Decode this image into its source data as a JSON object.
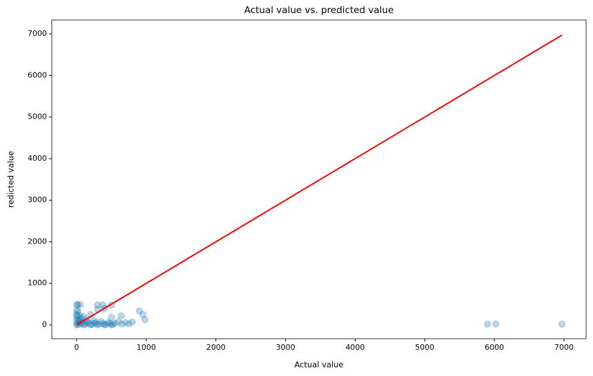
{
  "chart_data": {
    "type": "scatter",
    "title": "Actual value vs. predicted value",
    "x_label": "Actual value",
    "y_label": "redicted value",
    "x": [
      5,
      50,
      10,
      300,
      380,
      500,
      0,
      20,
      300,
      400,
      900,
      950,
      980,
      640,
      500,
      200,
      100,
      0,
      50,
      150,
      250,
      350,
      450,
      550,
      600,
      700,
      750,
      800,
      650,
      5900,
      6020,
      6970,
      0,
      10,
      30,
      60,
      80,
      120,
      170,
      220,
      280,
      320,
      380,
      420,
      480,
      520,
      20,
      40,
      0,
      100,
      200,
      300,
      400,
      500,
      150,
      250,
      0,
      30,
      70
    ],
    "y": [
      490,
      490,
      480,
      480,
      480,
      480,
      350,
      320,
      380,
      400,
      340,
      250,
      130,
      220,
      180,
      250,
      200,
      200,
      150,
      120,
      100,
      80,
      60,
      40,
      80,
      60,
      30,
      70,
      20,
      20,
      20,
      20,
      0,
      50,
      100,
      30,
      60,
      20,
      40,
      10,
      50,
      20,
      30,
      10,
      40,
      10,
      10,
      80,
      120,
      0,
      0,
      0,
      0,
      0,
      80,
      40,
      250,
      230,
      170
    ],
    "color": "#1f77b4",
    "line": {
      "x": [
        0,
        6970
      ],
      "y": [
        0,
        6970
      ],
      "color": "#ff0000"
    },
    "xlim": [
      -357,
      7317
    ],
    "ylim": [
      -332,
      7333
    ],
    "xticks": [
      0,
      1000,
      2000,
      3000,
      4000,
      5000,
      6000,
      7000
    ],
    "yticks": [
      0,
      1000,
      2000,
      3000,
      4000,
      5000,
      6000,
      7000
    ],
    "grid": false
  }
}
